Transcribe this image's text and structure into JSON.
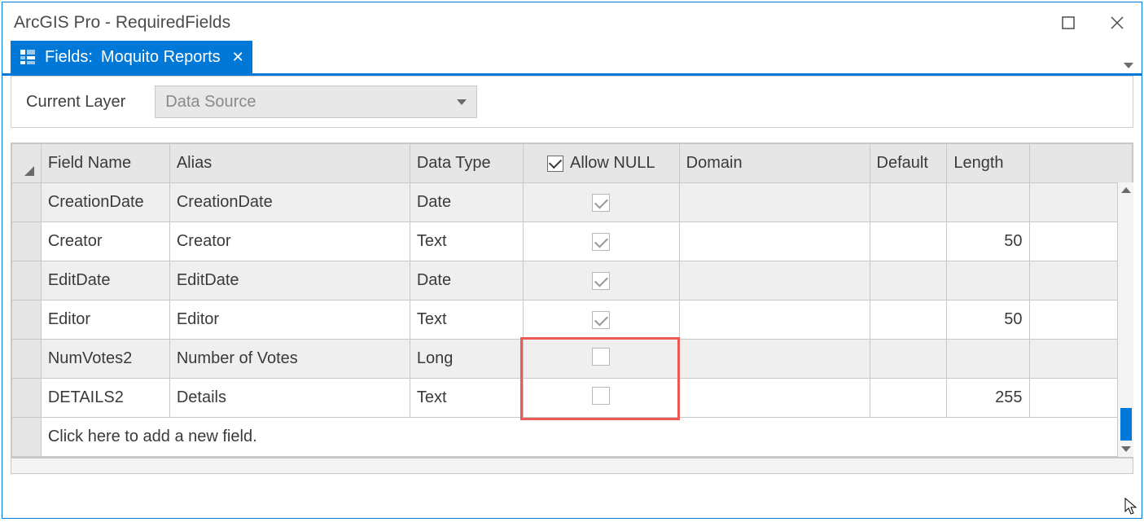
{
  "window": {
    "title": "ArcGIS Pro - RequiredFields"
  },
  "tab": {
    "prefix": "Fields:",
    "name": "Moquito Reports"
  },
  "toolbar": {
    "label": "Current Layer",
    "select_value": "Data Source"
  },
  "columns": {
    "field_name": "Field Name",
    "alias": "Alias",
    "data_type": "Data Type",
    "allow_null": "Allow NULL",
    "domain": "Domain",
    "default": "Default",
    "length": "Length"
  },
  "rows": [
    {
      "field": "CreationDate",
      "alias": "CreationDate",
      "type": "Date",
      "null": true,
      "domain": "",
      "default": "",
      "length": "",
      "alt": true
    },
    {
      "field": "Creator",
      "alias": "Creator",
      "type": "Text",
      "null": true,
      "domain": "",
      "default": "",
      "length": "50",
      "alt": false
    },
    {
      "field": "EditDate",
      "alias": "EditDate",
      "type": "Date",
      "null": true,
      "domain": "",
      "default": "",
      "length": "",
      "alt": true
    },
    {
      "field": "Editor",
      "alias": "Editor",
      "type": "Text",
      "null": true,
      "domain": "",
      "default": "",
      "length": "50",
      "alt": false
    },
    {
      "field": "NumVotes2",
      "alias": "Number of Votes",
      "type": "Long",
      "null": false,
      "domain": "",
      "default": "",
      "length": "",
      "alt": true
    },
    {
      "field": "DETAILS2",
      "alias": "Details",
      "type": "Text",
      "null": false,
      "domain": "",
      "default": "",
      "length": "255",
      "alt": false
    }
  ],
  "new_row_text": "Click here to add a new field.",
  "highlight": {
    "color": "#ec5a53",
    "top_row_index": 4,
    "rows": 2,
    "col": "allow_null"
  },
  "colors": {
    "accent": "#0078d7",
    "grid_border": "#c8c8c8",
    "header_bg": "#e6e6e6",
    "alt_bg": "#efefef",
    "text": "#3a3a3a",
    "muted": "#8a8a8a"
  }
}
